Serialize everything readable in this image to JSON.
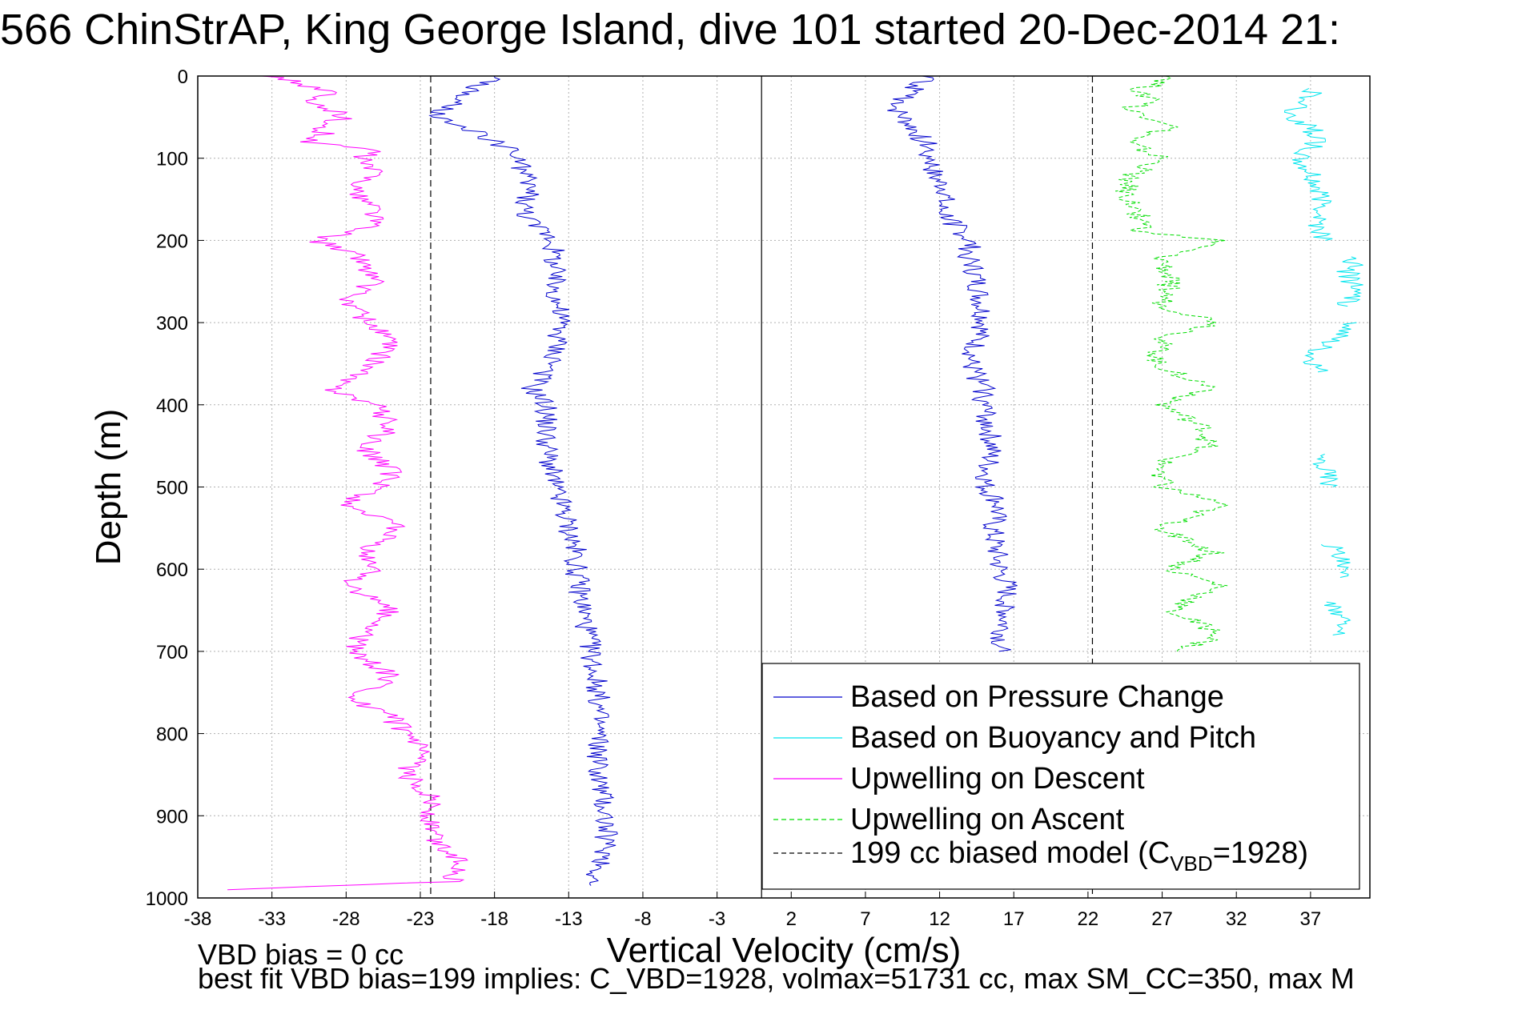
{
  "title": "566 ChinStrAP, King George Island, dive 101 started 20-Dec-2014 21:",
  "notes": {
    "bias": "VBD bias = 0 cc",
    "fit": "best fit VBD bias=199 implies: C_VBD=1928, volmax=51731 cc, max SM_CC=350, max M"
  },
  "chart_data": {
    "type": "line",
    "title": "566 ChinStrAP, King George Island, dive 101 started 20-Dec-2014 21:",
    "xlabel": "Vertical Velocity (cm/s)",
    "ylabel": "Depth (m)",
    "xlim": [
      -38,
      41
    ],
    "ylim": [
      0,
      1000
    ],
    "y_reversed": true,
    "xticks": [
      -38,
      -33,
      -28,
      -23,
      -18,
      -13,
      -8,
      -3,
      2,
      7,
      12,
      17,
      22,
      27,
      32,
      37
    ],
    "yticks": [
      0,
      100,
      200,
      300,
      400,
      500,
      600,
      700,
      800,
      900,
      1000
    ],
    "grid": true,
    "legend_position": "bottom-right",
    "reference_lines": {
      "solid_x": [
        0
      ],
      "dashed_x": [
        -22.3,
        22.3
      ]
    },
    "series": [
      {
        "name": "Based on Pressure Change",
        "color": "#0000cc",
        "style": "solid",
        "segments": [
          {
            "depth": [
              0,
              10,
              20,
              30,
              40,
              50,
              60,
              70,
              80,
              90,
              100,
              120,
              140,
              160,
              180,
              190,
              200,
              250,
              300,
              350,
              380,
              400,
              450,
              500,
              520,
              550,
              580,
              600,
              650,
              700,
              750,
              800,
              850,
              900,
              950,
              985
            ],
            "velocity": [
              -17.5,
              -19.0,
              -20.0,
              -20.5,
              -21.5,
              -22.0,
              -21.0,
              -19.0,
              -18.0,
              -17.0,
              -16.5,
              -16.0,
              -15.5,
              -16.0,
              -15.5,
              -14.5,
              -14.0,
              -14.0,
              -13.5,
              -14.0,
              -15.5,
              -14.5,
              -14.5,
              -14.0,
              -13.5,
              -13.0,
              -12.5,
              -12.5,
              -12.0,
              -11.5,
              -11.0,
              -11.0,
              -11.0,
              -10.5,
              -10.5,
              -11.5
            ]
          },
          {
            "depth": [
              0,
              20,
              40,
              60,
              80,
              100,
              120,
              140,
              160,
              180,
              200,
              220,
              250,
              300,
              320,
              350,
              380,
              400,
              450,
              500,
              520,
              550,
              600,
              620,
              650,
              700
            ],
            "velocity": [
              11.0,
              10.0,
              9.0,
              10.0,
              11.0,
              11.5,
              11.5,
              12.5,
              12.0,
              13.0,
              14.0,
              14.0,
              14.5,
              15.0,
              14.5,
              14.0,
              15.0,
              15.0,
              15.5,
              15.0,
              16.0,
              15.5,
              16.0,
              16.5,
              16.5,
              16.0
            ]
          }
        ]
      },
      {
        "name": "Based on Buoyancy and Pitch",
        "color": "#00e5ee",
        "style": "solid",
        "segments": [
          {
            "depth": [
              15,
              30,
              50,
              60,
              80,
              100,
              120,
              140,
              160,
              180,
              200
            ],
            "velocity": [
              37.5,
              36.5,
              35.5,
              37.0,
              37.5,
              36.0,
              37.0,
              37.5,
              38.0,
              37.5,
              38.0
            ]
          },
          {
            "depth": [
              220,
              240,
              260,
              280
            ],
            "velocity": [
              40.0,
              39.5,
              40.0,
              39.5
            ]
          },
          {
            "depth": [
              300,
              340,
              360
            ],
            "velocity": [
              40.0,
              37.0,
              37.5
            ]
          },
          {
            "depth": [
              460,
              480,
              500
            ],
            "velocity": [
              37.5,
              38.0,
              38.5
            ]
          },
          {
            "depth": [
              570,
              590,
              610
            ],
            "velocity": [
              38.5,
              39.0,
              39.0
            ]
          },
          {
            "depth": [
              640,
              660,
              680
            ],
            "velocity": [
              38.5,
              39.0,
              38.5
            ]
          }
        ]
      },
      {
        "name": "Upwelling on Descent",
        "color": "#ff00ff",
        "style": "solid",
        "segments": [
          {
            "depth": [
              0,
              10,
              20,
              30,
              40,
              50,
              60,
              70,
              80,
              90,
              100,
              120,
              140,
              160,
              180,
              200,
              220,
              250,
              270,
              300,
              320,
              350,
              380,
              400,
              430,
              450,
              480,
              500,
              520,
              550,
              580,
              600,
              620,
              650,
              680,
              700,
              730,
              760,
              780,
              800,
              820,
              850,
              880,
              900,
              930,
              960,
              980,
              990
            ],
            "velocity": [
              -33.0,
              -31.0,
              -29.0,
              -31.0,
              -29.0,
              -28.0,
              -30.0,
              -29.5,
              -31.0,
              -26.0,
              -27.0,
              -26.0,
              -27.5,
              -26.0,
              -26.0,
              -30.0,
              -27.0,
              -26.0,
              -28.0,
              -26.5,
              -25.0,
              -26.0,
              -29.0,
              -26.0,
              -25.0,
              -27.0,
              -25.0,
              -25.5,
              -28.0,
              -24.5,
              -27.0,
              -26.0,
              -28.0,
              -25.0,
              -27.0,
              -27.5,
              -25.0,
              -27.5,
              -25.0,
              -24.0,
              -23.0,
              -24.0,
              -22.0,
              -22.5,
              -22.0,
              -20.0,
              -21.0,
              -36.0
            ]
          }
        ]
      },
      {
        "name": "Upwelling on Ascent",
        "color": "#00dd00",
        "style": "dashed",
        "segments": [
          {
            "depth": [
              0,
              20,
              30,
              40,
              60,
              80,
              100,
              120,
              140,
              160,
              180,
              190,
              200,
              220,
              250,
              280,
              300,
              320,
              350,
              380,
              400,
              430,
              450,
              470,
              500,
              520,
              550,
              580,
              600,
              620,
              650,
              680,
              700
            ],
            "velocity": [
              28.0,
              25.0,
              27.0,
              24.5,
              28.0,
              24.5,
              27.0,
              25.0,
              24.5,
              25.0,
              26.0,
              25.5,
              31.0,
              27.0,
              27.5,
              27.0,
              31.0,
              27.0,
              26.5,
              30.5,
              27.0,
              30.0,
              30.0,
              27.0,
              27.0,
              31.0,
              27.0,
              30.5,
              27.5,
              31.0,
              27.5,
              31.0,
              28.0
            ]
          }
        ]
      },
      {
        "name": "199 cc biased model (C_VBD=1928)",
        "color": "#000000",
        "style": "dashed",
        "segments": []
      }
    ],
    "legend": [
      {
        "text": "Based on Pressure Change",
        "color": "#0000cc",
        "style": "solid"
      },
      {
        "text": "Based on Buoyancy and Pitch",
        "color": "#00e5ee",
        "style": "solid"
      },
      {
        "text": "Upwelling on Descent",
        "color": "#ff00ff",
        "style": "solid"
      },
      {
        "text": "Upwelling on Ascent",
        "color": "#00dd00",
        "style": "dashed"
      },
      {
        "text": "199 cc biased model (C",
        "sub": "VBD",
        "after": "=1928)",
        "color": "#000000",
        "style": "dashed"
      }
    ]
  }
}
